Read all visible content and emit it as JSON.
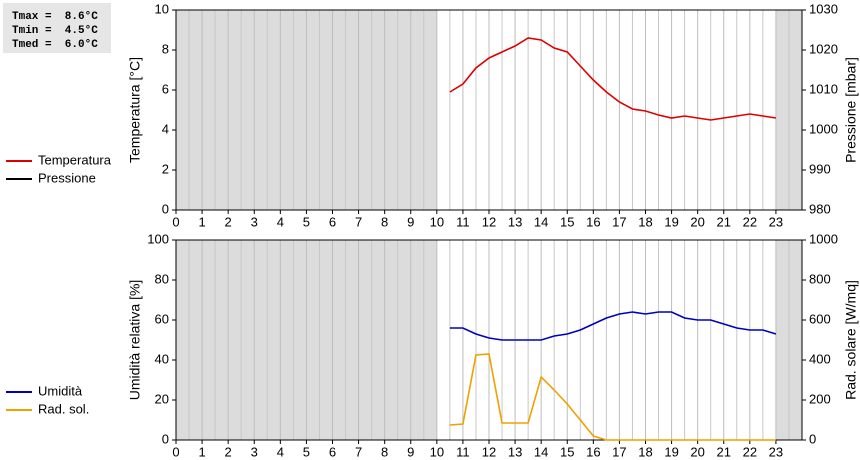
{
  "chart_data": [
    {
      "type": "line",
      "annotations": [
        "Tmax =  8.6°C",
        "Tmin =  4.5°C",
        "Tmed =  6.0°C"
      ],
      "ylabel": "Temperatura [°C]",
      "y2label": "Pressione [mbar]",
      "xlim": [
        0,
        24
      ],
      "xticks": [
        0,
        1,
        2,
        3,
        4,
        5,
        6,
        7,
        8,
        9,
        10,
        11,
        12,
        13,
        14,
        15,
        16,
        17,
        18,
        19,
        20,
        21,
        22,
        23
      ],
      "ylim": [
        0,
        10
      ],
      "yticks": [
        0,
        2,
        4,
        6,
        8,
        10
      ],
      "y2lim": [
        980,
        1030
      ],
      "y2ticks": [
        980,
        990,
        1000,
        1010,
        1020,
        1030
      ],
      "grid": "x",
      "shaded": [
        [
          0,
          10
        ],
        [
          23,
          24
        ]
      ],
      "x": [
        10.5,
        11,
        11.5,
        12,
        12.5,
        13,
        13.5,
        14,
        14.5,
        15,
        15.5,
        16,
        16.5,
        17,
        17.5,
        18,
        18.5,
        19,
        19.5,
        20,
        20.5,
        21,
        21.5,
        22,
        22.5,
        23
      ],
      "series": [
        {
          "name": "Temperatura",
          "color": "#dd0000",
          "values": [
            5.9,
            6.3,
            7.1,
            7.6,
            7.9,
            8.2,
            8.6,
            8.5,
            8.1,
            7.9,
            7.2,
            6.5,
            5.9,
            5.4,
            5.05,
            4.95,
            4.75,
            4.6,
            4.7,
            4.6,
            4.5,
            4.6,
            4.7,
            4.8,
            4.7,
            4.6
          ]
        },
        {
          "name": "Pressione",
          "color": "#000000",
          "axis": "y2",
          "values": [
            null,
            null,
            null,
            null,
            null,
            null,
            null,
            null,
            null,
            null,
            null,
            null,
            null,
            null,
            null,
            null,
            null,
            null,
            null,
            null,
            null,
            null,
            null,
            null,
            null,
            null
          ]
        }
      ]
    },
    {
      "type": "line",
      "ylabel": "Umidità relativa [%]",
      "y2label": "Rad. solare [W/mq]",
      "xlim": [
        0,
        24
      ],
      "xticks": [
        0,
        1,
        2,
        3,
        4,
        5,
        6,
        7,
        8,
        9,
        10,
        11,
        12,
        13,
        14,
        15,
        16,
        17,
        18,
        19,
        20,
        21,
        22,
        23
      ],
      "ylim": [
        0,
        100
      ],
      "yticks": [
        0,
        20,
        40,
        60,
        80,
        100
      ],
      "y2lim": [
        0,
        1000
      ],
      "y2ticks": [
        0,
        200,
        400,
        600,
        800,
        1000
      ],
      "grid": "x",
      "shaded": [
        [
          0,
          10
        ],
        [
          23,
          24
        ]
      ],
      "x": [
        10.5,
        11,
        11.5,
        12,
        12.5,
        13,
        13.5,
        14,
        14.5,
        15,
        15.5,
        16,
        16.5,
        17,
        17.5,
        18,
        18.5,
        19,
        19.5,
        20,
        20.5,
        21,
        21.5,
        22,
        22.5,
        23
      ],
      "series": [
        {
          "name": "Umidità",
          "color": "#0000bb",
          "values": [
            56,
            56,
            53,
            51,
            50,
            50,
            50,
            50,
            52,
            53,
            55,
            58,
            61,
            63,
            64,
            63,
            64,
            64,
            61,
            60,
            60,
            58,
            56,
            55,
            55,
            53
          ]
        },
        {
          "name": "Rad. sol.",
          "color": "#f0a000",
          "axis": "y2",
          "values": [
            75,
            80,
            425,
            430,
            85,
            85,
            85,
            315,
            250,
            180,
            100,
            20,
            0,
            0,
            0,
            0,
            0,
            0,
            0,
            0,
            0,
            0,
            0,
            0,
            0,
            0
          ]
        }
      ]
    }
  ]
}
